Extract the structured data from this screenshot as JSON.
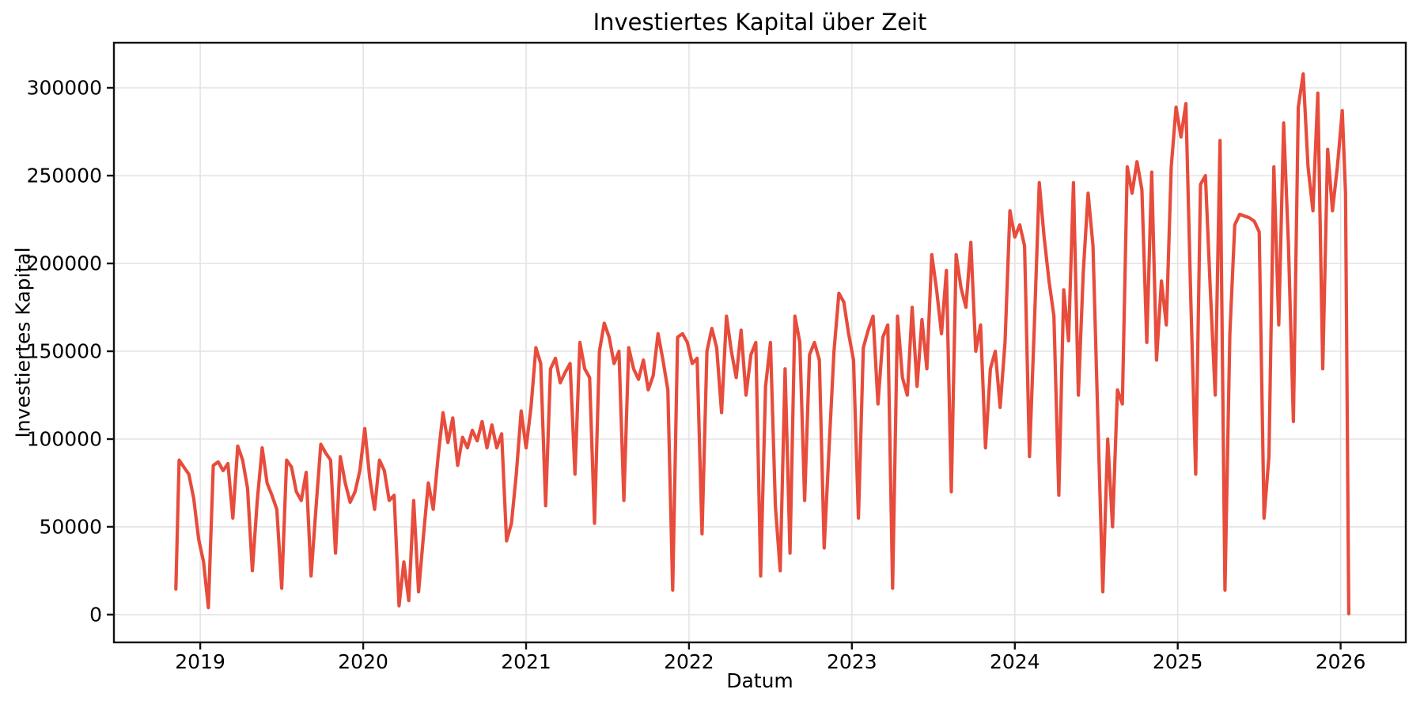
{
  "chart_data": {
    "type": "line",
    "title": "Investiertes Kapital über Zeit",
    "xlabel": "Datum",
    "ylabel": "Investiertes Kapital",
    "legend": "none",
    "grid": true,
    "grid_color": "#e3e3e3",
    "background": "#ffffff",
    "spine_color": "#111111",
    "line_color": "#e74c3c",
    "line_width": 4.2,
    "x_ticks": [
      2019,
      2020,
      2021,
      2022,
      2023,
      2024,
      2025,
      2026
    ],
    "y_ticks": [
      0,
      50000,
      100000,
      150000,
      200000,
      250000,
      300000
    ],
    "xlim": [
      2018.47,
      2026.4
    ],
    "ylim": [
      -15800,
      325700
    ],
    "points": [
      [
        2018.85,
        14500
      ],
      [
        2018.87,
        88000
      ],
      [
        2018.9,
        84000
      ],
      [
        2018.93,
        80000
      ],
      [
        2018.96,
        66000
      ],
      [
        2018.99,
        43000
      ],
      [
        2019.02,
        30000
      ],
      [
        2019.05,
        4000
      ],
      [
        2019.08,
        85000
      ],
      [
        2019.11,
        87000
      ],
      [
        2019.14,
        82000
      ],
      [
        2019.17,
        86000
      ],
      [
        2019.2,
        55000
      ],
      [
        2019.23,
        96000
      ],
      [
        2019.26,
        88000
      ],
      [
        2019.29,
        72000
      ],
      [
        2019.32,
        25000
      ],
      [
        2019.35,
        65000
      ],
      [
        2019.38,
        95000
      ],
      [
        2019.41,
        75000
      ],
      [
        2019.44,
        68000
      ],
      [
        2019.47,
        60000
      ],
      [
        2019.5,
        15000
      ],
      [
        2019.53,
        88000
      ],
      [
        2019.56,
        84000
      ],
      [
        2019.59,
        70000
      ],
      [
        2019.62,
        65000
      ],
      [
        2019.65,
        81000
      ],
      [
        2019.68,
        22000
      ],
      [
        2019.71,
        60000
      ],
      [
        2019.74,
        97000
      ],
      [
        2019.77,
        92000
      ],
      [
        2019.8,
        88000
      ],
      [
        2019.83,
        35000
      ],
      [
        2019.86,
        90000
      ],
      [
        2019.89,
        75000
      ],
      [
        2019.92,
        64000
      ],
      [
        2019.95,
        70000
      ],
      [
        2019.98,
        82000
      ],
      [
        2020.01,
        106000
      ],
      [
        2020.04,
        78000
      ],
      [
        2020.07,
        60000
      ],
      [
        2020.1,
        88000
      ],
      [
        2020.13,
        82000
      ],
      [
        2020.16,
        65000
      ],
      [
        2020.19,
        68000
      ],
      [
        2020.22,
        5000
      ],
      [
        2020.25,
        30000
      ],
      [
        2020.28,
        8000
      ],
      [
        2020.31,
        65000
      ],
      [
        2020.34,
        13000
      ],
      [
        2020.37,
        45000
      ],
      [
        2020.4,
        75000
      ],
      [
        2020.43,
        60000
      ],
      [
        2020.46,
        90000
      ],
      [
        2020.49,
        115000
      ],
      [
        2020.52,
        98000
      ],
      [
        2020.55,
        112000
      ],
      [
        2020.58,
        85000
      ],
      [
        2020.61,
        101000
      ],
      [
        2020.64,
        95000
      ],
      [
        2020.67,
        105000
      ],
      [
        2020.7,
        99000
      ],
      [
        2020.73,
        110000
      ],
      [
        2020.76,
        95000
      ],
      [
        2020.79,
        108000
      ],
      [
        2020.82,
        95000
      ],
      [
        2020.85,
        103000
      ],
      [
        2020.88,
        42000
      ],
      [
        2020.91,
        52000
      ],
      [
        2020.94,
        80000
      ],
      [
        2020.97,
        116000
      ],
      [
        2021.0,
        95000
      ],
      [
        2021.03,
        118000
      ],
      [
        2021.06,
        152000
      ],
      [
        2021.09,
        143000
      ],
      [
        2021.12,
        62000
      ],
      [
        2021.15,
        140000
      ],
      [
        2021.18,
        146000
      ],
      [
        2021.21,
        132000
      ],
      [
        2021.24,
        138000
      ],
      [
        2021.27,
        143000
      ],
      [
        2021.3,
        80000
      ],
      [
        2021.33,
        155000
      ],
      [
        2021.36,
        140000
      ],
      [
        2021.39,
        135000
      ],
      [
        2021.42,
        52000
      ],
      [
        2021.45,
        150000
      ],
      [
        2021.48,
        166000
      ],
      [
        2021.51,
        158000
      ],
      [
        2021.54,
        143000
      ],
      [
        2021.57,
        150000
      ],
      [
        2021.6,
        65000
      ],
      [
        2021.63,
        152000
      ],
      [
        2021.66,
        140000
      ],
      [
        2021.69,
        134000
      ],
      [
        2021.72,
        145000
      ],
      [
        2021.75,
        128000
      ],
      [
        2021.78,
        136000
      ],
      [
        2021.81,
        160000
      ],
      [
        2021.84,
        145000
      ],
      [
        2021.87,
        128000
      ],
      [
        2021.9,
        14000
      ],
      [
        2021.93,
        158000
      ],
      [
        2021.96,
        160000
      ],
      [
        2021.99,
        155000
      ],
      [
        2022.02,
        143000
      ],
      [
        2022.05,
        146000
      ],
      [
        2022.08,
        46000
      ],
      [
        2022.11,
        150000
      ],
      [
        2022.14,
        163000
      ],
      [
        2022.17,
        152000
      ],
      [
        2022.2,
        115000
      ],
      [
        2022.23,
        170000
      ],
      [
        2022.26,
        150000
      ],
      [
        2022.29,
        135000
      ],
      [
        2022.32,
        162000
      ],
      [
        2022.35,
        125000
      ],
      [
        2022.38,
        148000
      ],
      [
        2022.41,
        155000
      ],
      [
        2022.44,
        22000
      ],
      [
        2022.47,
        130000
      ],
      [
        2022.5,
        155000
      ],
      [
        2022.53,
        62000
      ],
      [
        2022.56,
        25000
      ],
      [
        2022.59,
        140000
      ],
      [
        2022.62,
        35000
      ],
      [
        2022.65,
        170000
      ],
      [
        2022.68,
        155000
      ],
      [
        2022.71,
        65000
      ],
      [
        2022.74,
        148000
      ],
      [
        2022.77,
        155000
      ],
      [
        2022.8,
        145000
      ],
      [
        2022.83,
        38000
      ],
      [
        2022.86,
        95000
      ],
      [
        2022.89,
        150000
      ],
      [
        2022.92,
        183000
      ],
      [
        2022.95,
        178000
      ],
      [
        2022.98,
        160000
      ],
      [
        2023.01,
        145000
      ],
      [
        2023.04,
        55000
      ],
      [
        2023.07,
        152000
      ],
      [
        2023.1,
        162000
      ],
      [
        2023.13,
        170000
      ],
      [
        2023.16,
        120000
      ],
      [
        2023.19,
        158000
      ],
      [
        2023.22,
        165000
      ],
      [
        2023.25,
        15000
      ],
      [
        2023.28,
        170000
      ],
      [
        2023.31,
        135000
      ],
      [
        2023.34,
        125000
      ],
      [
        2023.37,
        175000
      ],
      [
        2023.4,
        130000
      ],
      [
        2023.43,
        168000
      ],
      [
        2023.46,
        140000
      ],
      [
        2023.49,
        205000
      ],
      [
        2023.52,
        185000
      ],
      [
        2023.55,
        160000
      ],
      [
        2023.58,
        196000
      ],
      [
        2023.61,
        70000
      ],
      [
        2023.64,
        205000
      ],
      [
        2023.67,
        186000
      ],
      [
        2023.7,
        175000
      ],
      [
        2023.73,
        212000
      ],
      [
        2023.76,
        150000
      ],
      [
        2023.79,
        165000
      ],
      [
        2023.82,
        95000
      ],
      [
        2023.85,
        140000
      ],
      [
        2023.88,
        150000
      ],
      [
        2023.91,
        118000
      ],
      [
        2023.94,
        155000
      ],
      [
        2023.97,
        230000
      ],
      [
        2024.0,
        215000
      ],
      [
        2024.03,
        222000
      ],
      [
        2024.06,
        210000
      ],
      [
        2024.09,
        90000
      ],
      [
        2024.12,
        165000
      ],
      [
        2024.15,
        246000
      ],
      [
        2024.18,
        215000
      ],
      [
        2024.21,
        190000
      ],
      [
        2024.24,
        170000
      ],
      [
        2024.27,
        68000
      ],
      [
        2024.3,
        185000
      ],
      [
        2024.33,
        156000
      ],
      [
        2024.36,
        246000
      ],
      [
        2024.39,
        125000
      ],
      [
        2024.42,
        195000
      ],
      [
        2024.45,
        240000
      ],
      [
        2024.48,
        210000
      ],
      [
        2024.51,
        110000
      ],
      [
        2024.54,
        13000
      ],
      [
        2024.57,
        100000
      ],
      [
        2024.6,
        50000
      ],
      [
        2024.63,
        128000
      ],
      [
        2024.66,
        120000
      ],
      [
        2024.69,
        255000
      ],
      [
        2024.72,
        240000
      ],
      [
        2024.75,
        258000
      ],
      [
        2024.78,
        242000
      ],
      [
        2024.81,
        155000
      ],
      [
        2024.84,
        252000
      ],
      [
        2024.87,
        145000
      ],
      [
        2024.9,
        190000
      ],
      [
        2024.93,
        165000
      ],
      [
        2024.96,
        255000
      ],
      [
        2024.99,
        289000
      ],
      [
        2025.02,
        272000
      ],
      [
        2025.05,
        291000
      ],
      [
        2025.08,
        180000
      ],
      [
        2025.11,
        80000
      ],
      [
        2025.14,
        245000
      ],
      [
        2025.17,
        250000
      ],
      [
        2025.2,
        185000
      ],
      [
        2025.23,
        125000
      ],
      [
        2025.26,
        270000
      ],
      [
        2025.29,
        14000
      ],
      [
        2025.32,
        160000
      ],
      [
        2025.35,
        222000
      ],
      [
        2025.38,
        228000
      ],
      [
        2025.41,
        227000
      ],
      [
        2025.44,
        226000
      ],
      [
        2025.47,
        224000
      ],
      [
        2025.5,
        218000
      ],
      [
        2025.53,
        55000
      ],
      [
        2025.56,
        90000
      ],
      [
        2025.59,
        255000
      ],
      [
        2025.62,
        165000
      ],
      [
        2025.65,
        280000
      ],
      [
        2025.68,
        210000
      ],
      [
        2025.71,
        110000
      ],
      [
        2025.74,
        289000
      ],
      [
        2025.77,
        308000
      ],
      [
        2025.8,
        255000
      ],
      [
        2025.83,
        230000
      ],
      [
        2025.86,
        297000
      ],
      [
        2025.89,
        140000
      ],
      [
        2025.92,
        265000
      ],
      [
        2025.95,
        230000
      ],
      [
        2025.98,
        255000
      ],
      [
        2026.01,
        287000
      ],
      [
        2026.03,
        240000
      ],
      [
        2026.05,
        500
      ]
    ]
  }
}
